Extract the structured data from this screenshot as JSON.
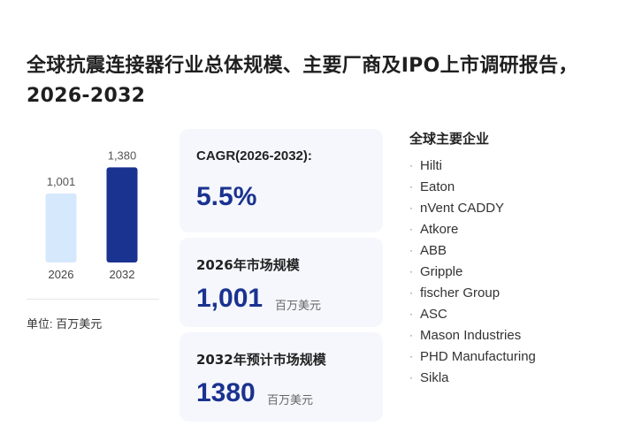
{
  "title": "全球抗震连接器行业总体规模、主要厂商及IPO上市调研报告，2026-2032",
  "chart_data": {
    "type": "bar",
    "categories": [
      "2026",
      "2032"
    ],
    "values": [
      1001,
      1380
    ],
    "value_labels": [
      "1,001",
      "1,380"
    ],
    "colors": [
      "#d6e8fb",
      "#1a3290"
    ],
    "ylim": [
      0,
      1600
    ],
    "grid": false
  },
  "unit_note": "单位: 百万美元",
  "cards": {
    "cagr": {
      "label": "CAGR(2026-2032):",
      "value": "5.5%"
    },
    "market_2026": {
      "label": "2026年市场规模",
      "value": "1,001",
      "unit": "百万美元"
    },
    "market_2032": {
      "label": "2032年预计市场规模",
      "value": "1380",
      "unit": "百万美元"
    }
  },
  "companies": {
    "title": "全球主要企业",
    "bullet": "·",
    "items": [
      "Hilti",
      "Eaton",
      "nVent CADDY",
      "Atkore",
      "ABB",
      "Gripple",
      "fischer Group",
      "ASC",
      "Mason Industries",
      "PHD Manufacturing",
      "Sikla"
    ]
  }
}
